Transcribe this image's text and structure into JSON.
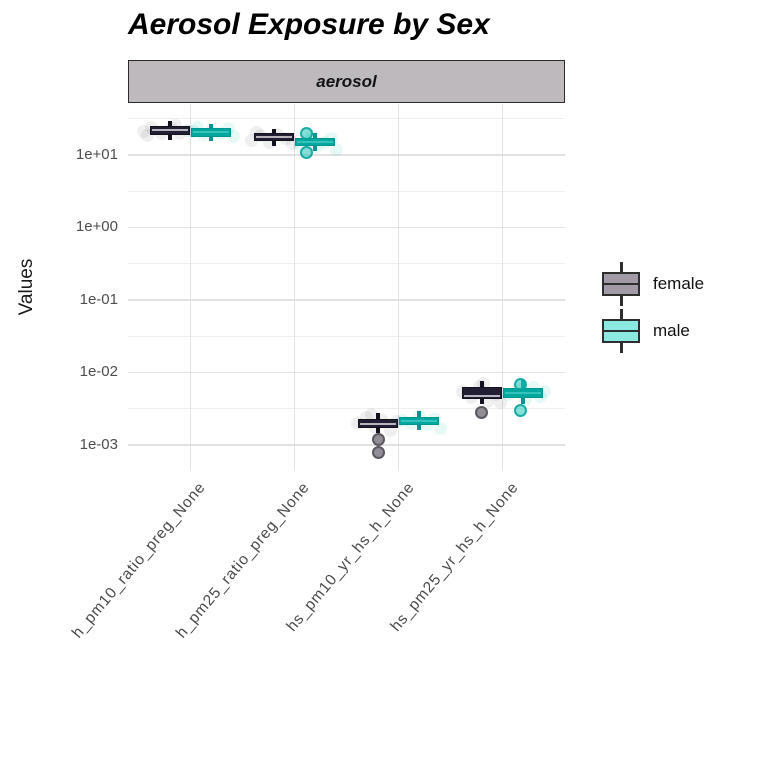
{
  "chart_data": {
    "type": "boxplot",
    "title": "Aerosol Exposure by Sex",
    "facet_label": "aerosol",
    "ylabel": "Values",
    "xlabel": "",
    "y_scale": "log10",
    "grid": true,
    "legend_position": "right",
    "y_ticks": [
      {
        "label": "1e+01",
        "exp": 1
      },
      {
        "label": "1e+00",
        "exp": 0
      },
      {
        "label": "1e-01",
        "exp": -1
      },
      {
        "label": "1e-02",
        "exp": -2
      },
      {
        "label": "1e-03",
        "exp": -3
      }
    ],
    "y_minor_exps": [
      1.5,
      0.5,
      -0.5,
      -1.5,
      -2.5
    ],
    "y_range_exps": [
      -3.345,
      1.703
    ],
    "categories": [
      "h_pm10_ratio_preg_None",
      "h_pm25_ratio_preg_None",
      "hs_pm10_yr_hs_h_None",
      "hs_pm25_yr_hs_h_None"
    ],
    "colors": {
      "female_dark": "#1d1a2e",
      "male_teal": "#00a79f",
      "strip_fill": "#bdb9bd",
      "grid_major": "#e2e2e2",
      "grid_minor": "#efefef",
      "tick_text": "#4d4d4d"
    },
    "groups": [
      {
        "name": "female",
        "offset_frac": -0.2,
        "color": "#15121f",
        "fill": "#221e33",
        "median_color": "#b9b4bd",
        "legend_fill": "#a29aa6",
        "outlier_fill": "rgba(139,135,145,0.95)",
        "outlier_stroke": "#5b5862",
        "jitter_color": "rgba(125,120,130,0.12)",
        "boxes": [
          {
            "q1": 18.8,
            "q3": 25.1,
            "med": 22.1,
            "lo": 16.1,
            "hi": 29.4,
            "outliers": []
          },
          {
            "q1": 15.6,
            "q3": 20.1,
            "med": 17.7,
            "lo": 13.3,
            "hi": 22.8,
            "outliers": []
          },
          {
            "q1": 0.00171,
            "q3": 0.00229,
            "med": 0.00195,
            "lo": 0.00147,
            "hi": 0.00276,
            "outliers": [
              [
                1,
                0.0012
              ],
              [
                1,
                0.0008
              ]
            ]
          },
          {
            "q1": 0.00431,
            "q3": 0.00631,
            "med": 0.00474,
            "lo": 0.00368,
            "hi": 0.00764,
            "outliers": [
              [
                0,
                0.0028
              ]
            ]
          }
        ],
        "jitter": [
          [
            0,
            -26,
            21
          ],
          [
            0,
            -18,
            24
          ],
          [
            0,
            -8,
            20
          ],
          [
            0,
            2,
            23
          ],
          [
            0,
            10,
            19.5
          ],
          [
            0,
            18,
            22
          ],
          [
            0,
            -22,
            18.5
          ],
          [
            0,
            6,
            25.5
          ],
          [
            1,
            -22,
            16
          ],
          [
            1,
            -13,
            18.5
          ],
          [
            1,
            -4,
            15
          ],
          [
            1,
            4,
            19
          ],
          [
            1,
            12,
            17
          ],
          [
            1,
            19,
            14.5
          ],
          [
            1,
            -17,
            20.5
          ],
          [
            2,
            -20,
            0.002
          ],
          [
            2,
            -11,
            0.0024
          ],
          [
            2,
            -3,
            0.0018
          ],
          [
            2,
            5,
            0.0022
          ],
          [
            2,
            13,
            0.0016
          ],
          [
            2,
            19,
            0.0021
          ],
          [
            2,
            -6,
            0.0026
          ],
          [
            3,
            -19,
            0.0055
          ],
          [
            3,
            -10,
            0.0045
          ],
          [
            3,
            -2,
            0.0065
          ],
          [
            3,
            6,
            0.004
          ],
          [
            3,
            14,
            0.005
          ],
          [
            3,
            19,
            0.0038
          ],
          [
            3,
            2,
            0.007
          ]
        ]
      },
      {
        "name": "male",
        "offset_frac": 0.2,
        "color": "#00968f",
        "fill": "#00a79f",
        "median_color": "#35c4bb",
        "legend_fill": "#8ce9e2",
        "outlier_fill": "rgba(35,195,185,0.55)",
        "outlier_stroke": "rgba(0,160,150,0.8)",
        "jitter_color": "rgba(60,205,196,0.13)",
        "boxes": [
          {
            "q1": 17.7,
            "q3": 23.5,
            "med": 20.8,
            "lo": 15.6,
            "hi": 26.7,
            "outliers": []
          },
          {
            "q1": 13.3,
            "q3": 17.1,
            "med": 15.1,
            "lo": 11.3,
            "hi": 20.1,
            "outliers": [
              [
                -9,
                19.5
              ],
              [
                -9,
                10.7
              ]
            ]
          },
          {
            "q1": 0.00189,
            "q3": 0.00243,
            "med": 0.00214,
            "lo": 0.00161,
            "hi": 0.00294,
            "outliers": []
          },
          {
            "q1": 0.00445,
            "q3": 0.00611,
            "med": 0.00521,
            "lo": 0.00368,
            "hi": 0.00789,
            "outliers": [
              [
                -3,
                0.0068
              ],
              [
                -3,
                0.003
              ]
            ]
          }
        ],
        "jitter": [
          [
            0,
            -18,
            21
          ],
          [
            0,
            -8,
            19
          ],
          [
            0,
            0,
            22
          ],
          [
            0,
            9,
            20
          ],
          [
            0,
            17,
            23
          ],
          [
            0,
            22,
            18
          ],
          [
            0,
            -14,
            24
          ],
          [
            1,
            -16,
            14
          ],
          [
            1,
            -7,
            16
          ],
          [
            1,
            1,
            13
          ],
          [
            1,
            9,
            15
          ],
          [
            1,
            16,
            17
          ],
          [
            1,
            21,
            12
          ],
          [
            1,
            -4,
            18
          ],
          [
            2,
            -17,
            0.0022
          ],
          [
            2,
            -8,
            0.002
          ],
          [
            2,
            0,
            0.0025
          ],
          [
            2,
            8,
            0.0019
          ],
          [
            2,
            15,
            0.0023
          ],
          [
            2,
            21,
            0.0017
          ],
          [
            3,
            -15,
            0.005
          ],
          [
            3,
            -6,
            0.0058
          ],
          [
            3,
            2,
            0.0043
          ],
          [
            3,
            10,
            0.0063
          ],
          [
            3,
            17,
            0.0047
          ],
          [
            3,
            21,
            0.0055
          ]
        ]
      }
    ],
    "legend": {
      "items": [
        {
          "label": "female"
        },
        {
          "label": "male"
        }
      ]
    }
  }
}
